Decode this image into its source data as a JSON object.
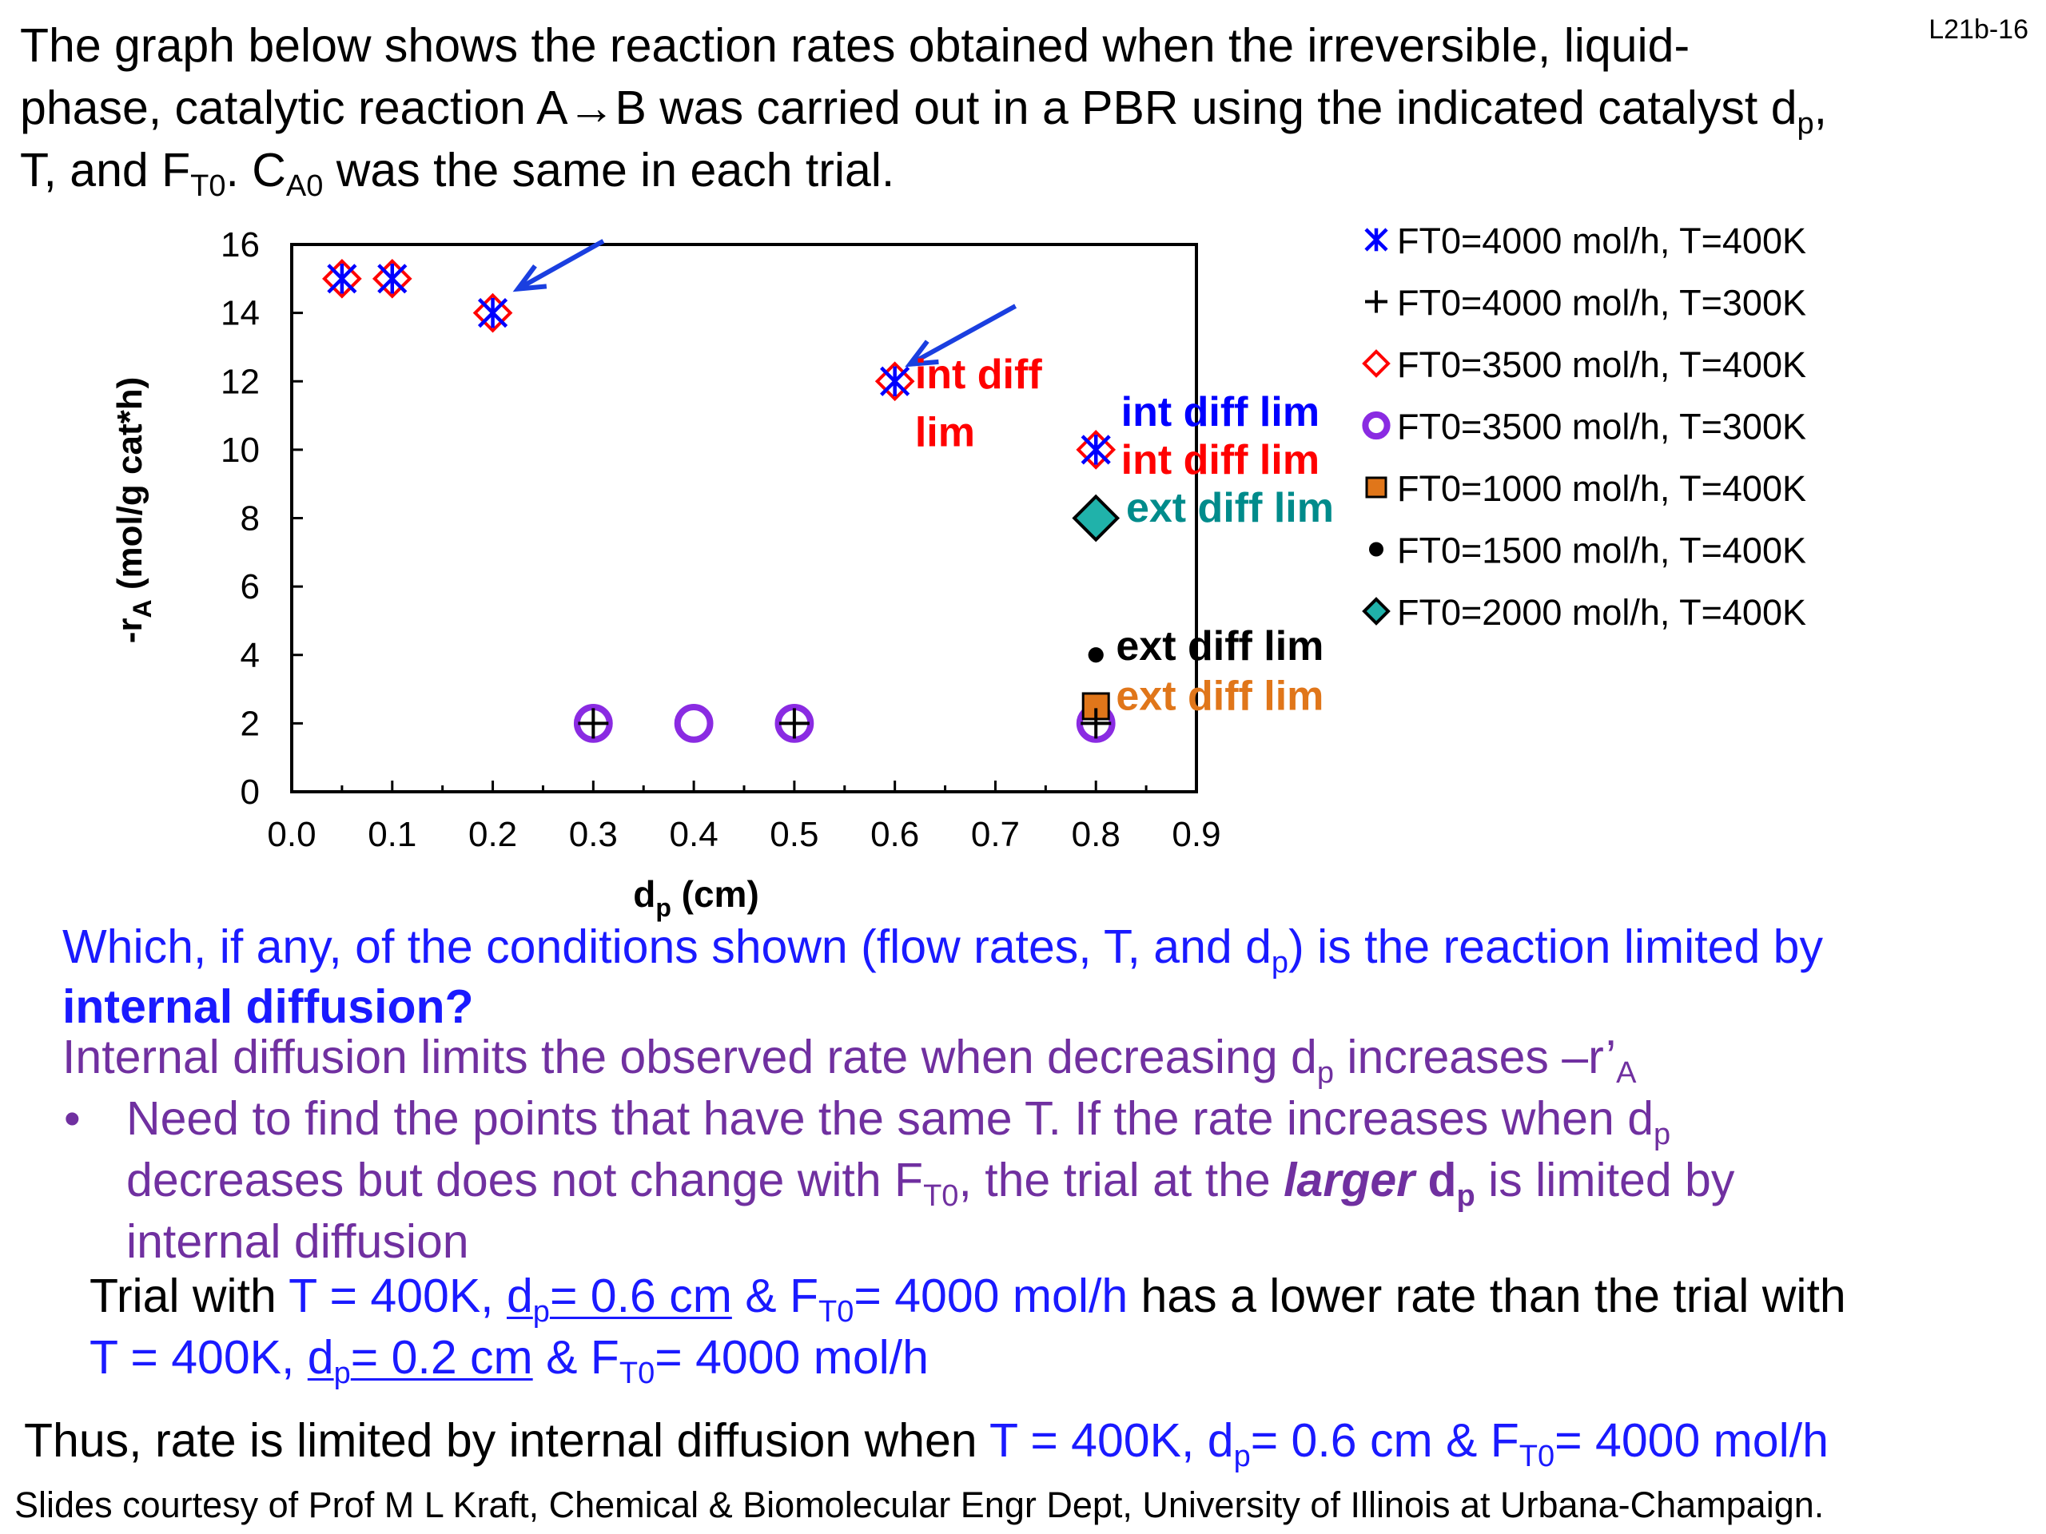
{
  "slide_id": "L21b-16",
  "intro": {
    "line1": "The graph below shows the reaction rates obtained when the irreversible, liquid-",
    "line2a": "phase, catalytic reaction A→B was carried out in a PBR using the indicated catalyst d",
    "line2sub": "p",
    "line2b": ",",
    "line3a": "T, and F",
    "line3sub1": "T0",
    "line3b": ". C",
    "line3sub2": "A0",
    "line3c": " was the same in each trial."
  },
  "chart_data": {
    "type": "scatter",
    "xlabel": "d",
    "xlabel_sub": "p",
    "xlabel_unit": " (cm)",
    "ylabel": "-r",
    "ylabel_sub": "A",
    "ylabel_unit": " (mol/g cat*h)",
    "xlim": [
      0,
      0.9
    ],
    "ylim": [
      0,
      16
    ],
    "xticks": [
      "0.0",
      "0.1",
      "0.2",
      "0.3",
      "0.4",
      "0.5",
      "0.6",
      "0.7",
      "0.8",
      "0.9"
    ],
    "yticks": [
      "0",
      "2",
      "4",
      "6",
      "8",
      "10",
      "12",
      "14",
      "16"
    ],
    "legend_placement": "right, outside plot",
    "series": [
      {
        "name": "FT0=4000 mol/h, T=400K",
        "marker": "asterisk",
        "color": "#0000ff",
        "x": [
          0.05,
          0.1,
          0.2,
          0.6,
          0.8
        ],
        "y": [
          15,
          15,
          14,
          12,
          10
        ]
      },
      {
        "name": "FT0=4000 mol/h, T=300K",
        "marker": "plus",
        "color": "#000000",
        "x": [
          0.3,
          0.5,
          0.8
        ],
        "y": [
          2,
          2,
          2
        ]
      },
      {
        "name": "FT0=3500 mol/h, T=400K",
        "marker": "diamond-open",
        "color": "#ff0000",
        "x": [
          0.05,
          0.1,
          0.2,
          0.6,
          0.8
        ],
        "y": [
          15,
          15,
          14,
          12,
          10
        ]
      },
      {
        "name": "FT0=3500 mol/h, T=300K",
        "marker": "circle-open",
        "color": "#8a2be2",
        "x": [
          0.3,
          0.4,
          0.5,
          0.8
        ],
        "y": [
          2,
          2,
          2,
          2
        ]
      },
      {
        "name": "FT0=1000 mol/h, T=400K",
        "marker": "square",
        "color": "#e0761a",
        "x": [
          0.8
        ],
        "y": [
          2.5
        ]
      },
      {
        "name": "FT0=1500 mol/h, T=400K",
        "marker": "circle",
        "color": "#000000",
        "x": [
          0.8
        ],
        "y": [
          4
        ]
      },
      {
        "name": "FT0=2000 mol/h, T=400K",
        "marker": "diamond",
        "color": "#20b2aa",
        "x": [
          0.8
        ],
        "y": [
          8
        ]
      }
    ],
    "annotations": [
      {
        "text": "int diff",
        "color": "#ff0000",
        "x": 0.62,
        "y": 11.8
      },
      {
        "text": "lim",
        "color": "#ff0000",
        "x": 0.62,
        "y": 10.1
      },
      {
        "text": "int diff lim",
        "color": "#0000ff",
        "x": 0.825,
        "y": 10.7
      },
      {
        "text": "int diff lim",
        "color": "#ff0000",
        "x": 0.825,
        "y": 9.3
      },
      {
        "text": "ext diff lim",
        "color": "#008b8b",
        "x": 0.83,
        "y": 7.9
      },
      {
        "text": "ext diff lim",
        "color": "#000000",
        "x": 0.82,
        "y": 3.85
      },
      {
        "text": "ext diff lim",
        "color": "#e0761a",
        "x": 0.82,
        "y": 2.4
      }
    ],
    "arrows": [
      {
        "from": [
          0.31,
          16.1
        ],
        "to": [
          0.225,
          14.7
        ]
      },
      {
        "from": [
          0.72,
          14.2
        ],
        "to": [
          0.615,
          12.5
        ]
      }
    ]
  },
  "question": {
    "line1a": "Which, if any, of the conditions shown (flow rates, T, and d",
    "line1sub": "p",
    "line1b": ") is the reaction limited by",
    "line2": "internal diffusion?"
  },
  "explanation": {
    "line1a": "Internal diffusion limits the observed rate when decreasing d",
    "line1sub": "p",
    "line1b": " increases –r’",
    "line1sub2": "A",
    "bullet": "•",
    "b1a": "Need to find the points that have the same T. If the rate increases when d",
    "b1sub": "p",
    "b2a": "decreases but does not change with F",
    "b2sub": "T0",
    "b2b": ", the trial at the ",
    "b2larger": "larger",
    "b2c": " d",
    "b2sub2": "p",
    "b2d": " is limited by",
    "b3": "internal diffusion"
  },
  "trial": {
    "a": "Trial with ",
    "b": "T = 400K, ",
    "c": "d",
    "c_sub": "p",
    "c2": "= 0.6 cm",
    "d": " & F",
    "d_sub": "T0",
    "d2": "= 4000 mol/h",
    "e": " has a lower rate than the trial with",
    "f": "T = 400K, ",
    "g": "d",
    "g_sub": "p",
    "g2": "= 0.2 cm",
    "h": " & F",
    "h_sub": "T0",
    "h2": "= 4000 mol/h"
  },
  "conclusion": {
    "a": "Thus, rate is limited by internal diffusion when ",
    "b": "T = 400K, d",
    "b_sub": "p",
    "c": "= 0.6 cm & F",
    "c_sub": "T0",
    "d": "= 4000 mol/h"
  },
  "footer": "Slides courtesy of Prof M L Kraft, Chemical & Biomolecular Engr Dept, University of Illinois at Urbana-Champaign."
}
